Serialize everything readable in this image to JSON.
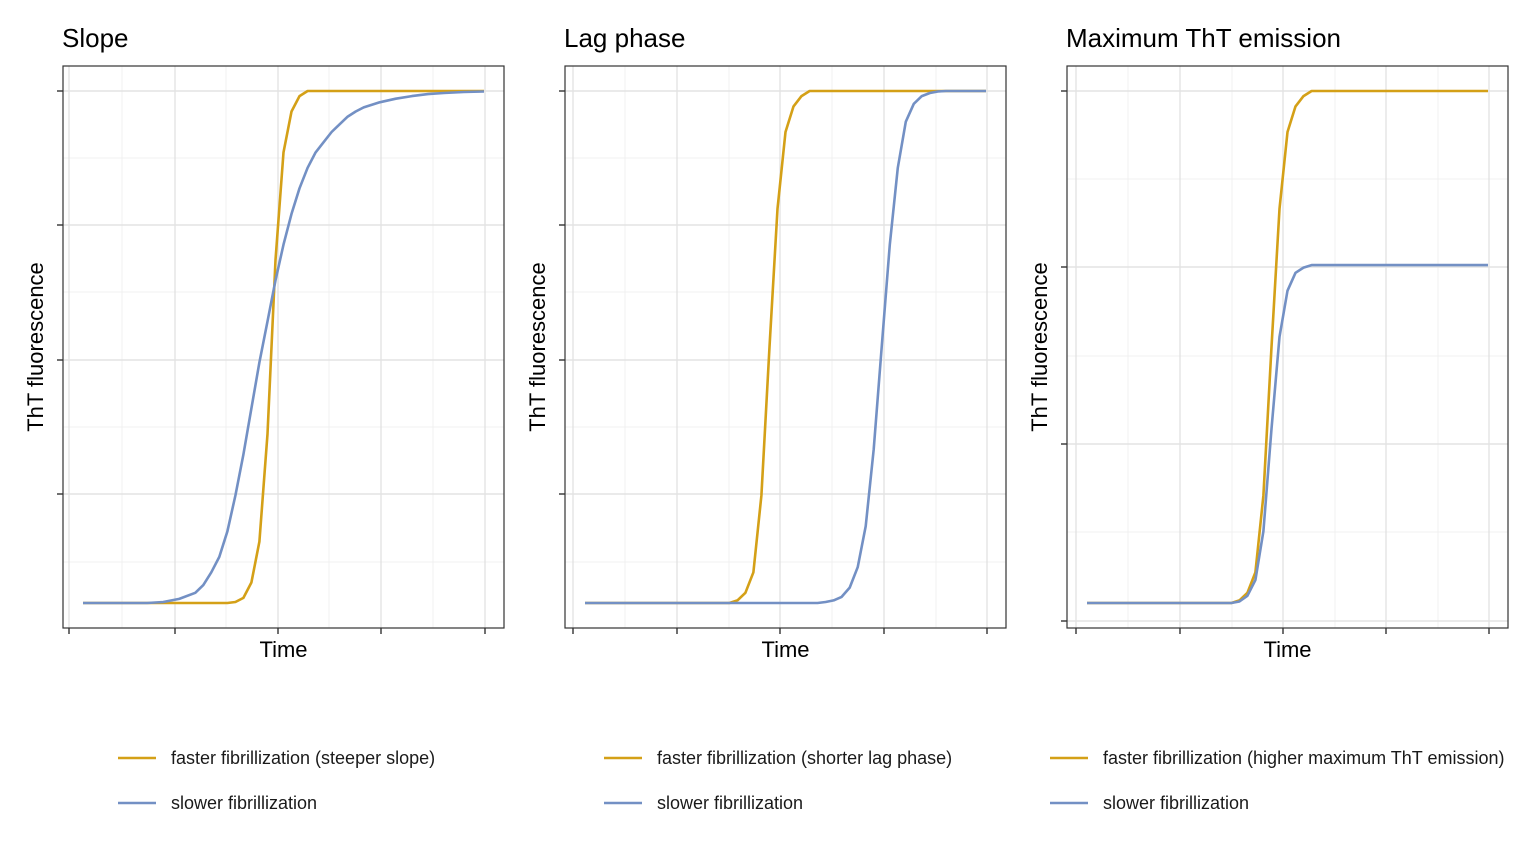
{
  "colors": {
    "faster": "#d4a017",
    "slower": "#7390c4"
  },
  "chart_data": [
    {
      "type": "line",
      "title": "Slope",
      "xlabel": "Time",
      "ylabel": "ThT fluorescence",
      "xlim": [
        0,
        1
      ],
      "ylim": [
        0,
        1
      ],
      "grid": true,
      "tick_labels": false,
      "legend_position": "bottom",
      "series": [
        {
          "name": "faster fibrillization (steeper slope)",
          "color_key": "faster",
          "x": [
            0.0,
            0.28,
            0.36,
            0.38,
            0.4,
            0.42,
            0.44,
            0.46,
            0.48,
            0.5,
            0.52,
            0.54,
            0.56,
            0.58,
            0.6,
            0.62,
            0.65,
            0.7,
            1.0
          ],
          "y": [
            0.0,
            0.0,
            0.0,
            0.002,
            0.01,
            0.04,
            0.12,
            0.33,
            0.67,
            0.88,
            0.96,
            0.99,
            1.0,
            1.0,
            1.0,
            1.0,
            1.0,
            1.0,
            1.0
          ]
        },
        {
          "name": "slower fibrillization",
          "color_key": "slower",
          "x": [
            0.0,
            0.16,
            0.2,
            0.24,
            0.28,
            0.3,
            0.32,
            0.34,
            0.36,
            0.38,
            0.4,
            0.42,
            0.44,
            0.46,
            0.48,
            0.5,
            0.52,
            0.54,
            0.56,
            0.58,
            0.6,
            0.62,
            0.64,
            0.66,
            0.68,
            0.7,
            0.74,
            0.78,
            0.82,
            0.86,
            0.9,
            0.95,
            1.0
          ],
          "y": [
            0.0,
            0.0,
            0.002,
            0.008,
            0.02,
            0.035,
            0.06,
            0.09,
            0.14,
            0.21,
            0.29,
            0.38,
            0.47,
            0.55,
            0.63,
            0.7,
            0.76,
            0.81,
            0.85,
            0.88,
            0.9,
            0.92,
            0.935,
            0.95,
            0.96,
            0.968,
            0.978,
            0.985,
            0.99,
            0.994,
            0.996,
            0.998,
            0.999
          ]
        }
      ]
    },
    {
      "type": "line",
      "title": "Lag phase",
      "xlabel": "Time",
      "ylabel": "ThT fluorescence",
      "xlim": [
        0,
        1
      ],
      "ylim": [
        0,
        1
      ],
      "grid": true,
      "tick_labels": false,
      "legend_position": "bottom",
      "series": [
        {
          "name": "faster fibrillization (shorter lag phase)",
          "color_key": "faster",
          "x": [
            0.0,
            0.3,
            0.36,
            0.38,
            0.4,
            0.42,
            0.44,
            0.46,
            0.48,
            0.5,
            0.52,
            0.54,
            0.56,
            0.58,
            0.6,
            0.62,
            0.65,
            0.7,
            1.0
          ],
          "y": [
            0.0,
            0.0,
            0.0,
            0.005,
            0.02,
            0.06,
            0.21,
            0.5,
            0.77,
            0.92,
            0.97,
            0.99,
            1.0,
            1.0,
            1.0,
            1.0,
            1.0,
            1.0,
            1.0
          ]
        },
        {
          "name": "slower fibrillization",
          "color_key": "slower",
          "x": [
            0.0,
            0.5,
            0.58,
            0.6,
            0.62,
            0.64,
            0.66,
            0.68,
            0.7,
            0.72,
            0.74,
            0.76,
            0.78,
            0.8,
            0.82,
            0.84,
            0.86,
            0.88,
            0.9,
            0.92,
            0.94,
            0.96,
            0.98,
            1.0
          ],
          "y": [
            0.0,
            0.0,
            0.0,
            0.002,
            0.005,
            0.012,
            0.03,
            0.07,
            0.15,
            0.3,
            0.5,
            0.7,
            0.85,
            0.94,
            0.975,
            0.99,
            0.996,
            0.999,
            1.0,
            1.0,
            1.0,
            1.0,
            1.0,
            1.0
          ]
        }
      ]
    },
    {
      "type": "line",
      "title": "Maximum ThT emission",
      "xlabel": "Time",
      "ylabel": "ThT fluorescence",
      "xlim": [
        0,
        1
      ],
      "ylim": [
        0,
        1
      ],
      "grid": true,
      "tick_labels": false,
      "legend_position": "bottom",
      "series": [
        {
          "name": "faster fibrillization (higher maximum ThT emission)",
          "color_key": "faster",
          "x": [
            0.0,
            0.3,
            0.36,
            0.38,
            0.4,
            0.42,
            0.44,
            0.46,
            0.48,
            0.5,
            0.52,
            0.54,
            0.56,
            0.58,
            0.6,
            0.62,
            0.65,
            0.7,
            1.0
          ],
          "y": [
            0.0,
            0.0,
            0.0,
            0.005,
            0.02,
            0.06,
            0.21,
            0.5,
            0.77,
            0.92,
            0.97,
            0.99,
            1.0,
            1.0,
            1.0,
            1.0,
            1.0,
            1.0,
            1.0
          ]
        },
        {
          "name": "slower fibrillization",
          "color_key": "slower",
          "x": [
            0.0,
            0.3,
            0.36,
            0.38,
            0.4,
            0.42,
            0.44,
            0.46,
            0.48,
            0.5,
            0.52,
            0.54,
            0.56,
            0.58,
            0.6,
            0.62,
            0.65,
            0.7,
            1.0
          ],
          "y": [
            0.0,
            0.0,
            0.0,
            0.003,
            0.014,
            0.045,
            0.14,
            0.34,
            0.52,
            0.61,
            0.645,
            0.655,
            0.66,
            0.66,
            0.66,
            0.66,
            0.66,
            0.66,
            0.66
          ]
        }
      ]
    }
  ]
}
